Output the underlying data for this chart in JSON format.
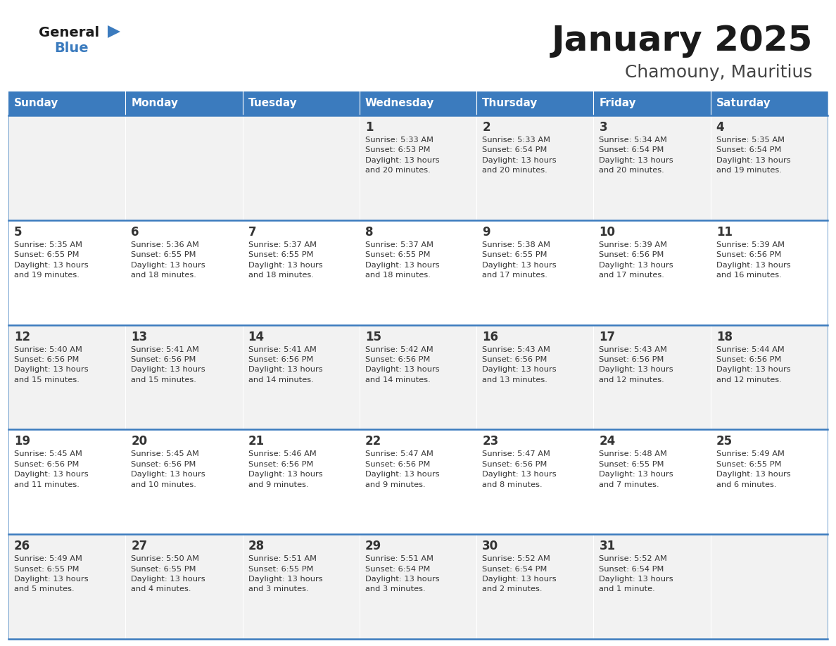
{
  "title": "January 2025",
  "subtitle": "Chamouny, Mauritius",
  "days_of_week": [
    "Sunday",
    "Monday",
    "Tuesday",
    "Wednesday",
    "Thursday",
    "Friday",
    "Saturday"
  ],
  "header_bg": "#3B7BBE",
  "header_text": "#FFFFFF",
  "row_bg_odd": "#F2F2F2",
  "row_bg_even": "#FFFFFF",
  "cell_text": "#333333",
  "border_color": "#3B7BBE",
  "title_color": "#1a1a1a",
  "subtitle_color": "#444444",
  "logo_text_color": "#1a1a1a",
  "logo_blue_color": "#3B7BBE",
  "fig_width": 11.88,
  "fig_height": 9.18,
  "calendar": [
    [
      {
        "day": "",
        "info": ""
      },
      {
        "day": "",
        "info": ""
      },
      {
        "day": "",
        "info": ""
      },
      {
        "day": "1",
        "info": "Sunrise: 5:33 AM\nSunset: 6:53 PM\nDaylight: 13 hours\nand 20 minutes."
      },
      {
        "day": "2",
        "info": "Sunrise: 5:33 AM\nSunset: 6:54 PM\nDaylight: 13 hours\nand 20 minutes."
      },
      {
        "day": "3",
        "info": "Sunrise: 5:34 AM\nSunset: 6:54 PM\nDaylight: 13 hours\nand 20 minutes."
      },
      {
        "day": "4",
        "info": "Sunrise: 5:35 AM\nSunset: 6:54 PM\nDaylight: 13 hours\nand 19 minutes."
      }
    ],
    [
      {
        "day": "5",
        "info": "Sunrise: 5:35 AM\nSunset: 6:55 PM\nDaylight: 13 hours\nand 19 minutes."
      },
      {
        "day": "6",
        "info": "Sunrise: 5:36 AM\nSunset: 6:55 PM\nDaylight: 13 hours\nand 18 minutes."
      },
      {
        "day": "7",
        "info": "Sunrise: 5:37 AM\nSunset: 6:55 PM\nDaylight: 13 hours\nand 18 minutes."
      },
      {
        "day": "8",
        "info": "Sunrise: 5:37 AM\nSunset: 6:55 PM\nDaylight: 13 hours\nand 18 minutes."
      },
      {
        "day": "9",
        "info": "Sunrise: 5:38 AM\nSunset: 6:55 PM\nDaylight: 13 hours\nand 17 minutes."
      },
      {
        "day": "10",
        "info": "Sunrise: 5:39 AM\nSunset: 6:56 PM\nDaylight: 13 hours\nand 17 minutes."
      },
      {
        "day": "11",
        "info": "Sunrise: 5:39 AM\nSunset: 6:56 PM\nDaylight: 13 hours\nand 16 minutes."
      }
    ],
    [
      {
        "day": "12",
        "info": "Sunrise: 5:40 AM\nSunset: 6:56 PM\nDaylight: 13 hours\nand 15 minutes."
      },
      {
        "day": "13",
        "info": "Sunrise: 5:41 AM\nSunset: 6:56 PM\nDaylight: 13 hours\nand 15 minutes."
      },
      {
        "day": "14",
        "info": "Sunrise: 5:41 AM\nSunset: 6:56 PM\nDaylight: 13 hours\nand 14 minutes."
      },
      {
        "day": "15",
        "info": "Sunrise: 5:42 AM\nSunset: 6:56 PM\nDaylight: 13 hours\nand 14 minutes."
      },
      {
        "day": "16",
        "info": "Sunrise: 5:43 AM\nSunset: 6:56 PM\nDaylight: 13 hours\nand 13 minutes."
      },
      {
        "day": "17",
        "info": "Sunrise: 5:43 AM\nSunset: 6:56 PM\nDaylight: 13 hours\nand 12 minutes."
      },
      {
        "day": "18",
        "info": "Sunrise: 5:44 AM\nSunset: 6:56 PM\nDaylight: 13 hours\nand 12 minutes."
      }
    ],
    [
      {
        "day": "19",
        "info": "Sunrise: 5:45 AM\nSunset: 6:56 PM\nDaylight: 13 hours\nand 11 minutes."
      },
      {
        "day": "20",
        "info": "Sunrise: 5:45 AM\nSunset: 6:56 PM\nDaylight: 13 hours\nand 10 minutes."
      },
      {
        "day": "21",
        "info": "Sunrise: 5:46 AM\nSunset: 6:56 PM\nDaylight: 13 hours\nand 9 minutes."
      },
      {
        "day": "22",
        "info": "Sunrise: 5:47 AM\nSunset: 6:56 PM\nDaylight: 13 hours\nand 9 minutes."
      },
      {
        "day": "23",
        "info": "Sunrise: 5:47 AM\nSunset: 6:56 PM\nDaylight: 13 hours\nand 8 minutes."
      },
      {
        "day": "24",
        "info": "Sunrise: 5:48 AM\nSunset: 6:55 PM\nDaylight: 13 hours\nand 7 minutes."
      },
      {
        "day": "25",
        "info": "Sunrise: 5:49 AM\nSunset: 6:55 PM\nDaylight: 13 hours\nand 6 minutes."
      }
    ],
    [
      {
        "day": "26",
        "info": "Sunrise: 5:49 AM\nSunset: 6:55 PM\nDaylight: 13 hours\nand 5 minutes."
      },
      {
        "day": "27",
        "info": "Sunrise: 5:50 AM\nSunset: 6:55 PM\nDaylight: 13 hours\nand 4 minutes."
      },
      {
        "day": "28",
        "info": "Sunrise: 5:51 AM\nSunset: 6:55 PM\nDaylight: 13 hours\nand 3 minutes."
      },
      {
        "day": "29",
        "info": "Sunrise: 5:51 AM\nSunset: 6:54 PM\nDaylight: 13 hours\nand 3 minutes."
      },
      {
        "day": "30",
        "info": "Sunrise: 5:52 AM\nSunset: 6:54 PM\nDaylight: 13 hours\nand 2 minutes."
      },
      {
        "day": "31",
        "info": "Sunrise: 5:52 AM\nSunset: 6:54 PM\nDaylight: 13 hours\nand 1 minute."
      },
      {
        "day": "",
        "info": ""
      }
    ]
  ]
}
